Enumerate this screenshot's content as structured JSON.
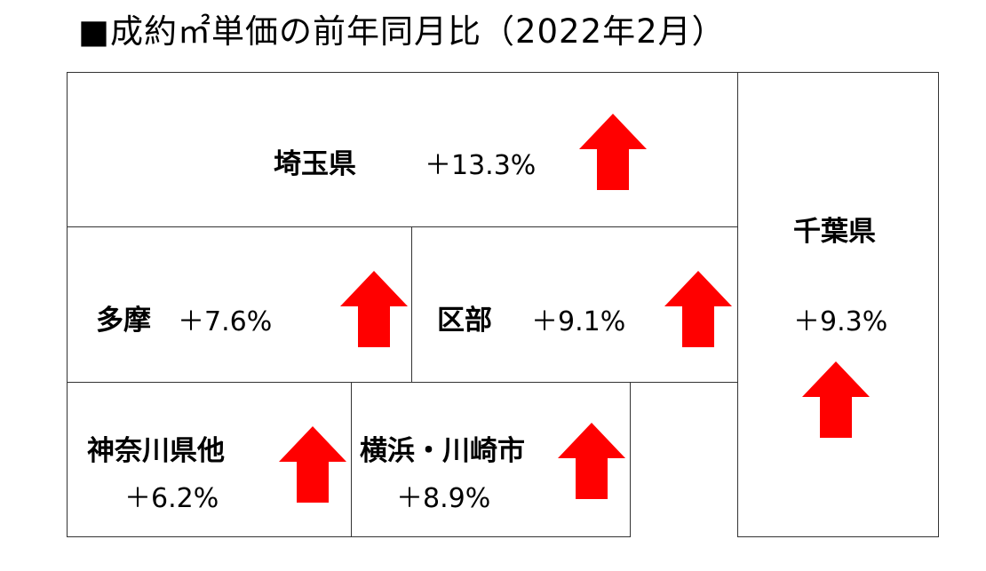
{
  "title": "■成約㎡単価の前年同月比（2022年2月）",
  "arrow_color": "#ff0000",
  "regions": {
    "saitama": {
      "name": "埼玉県",
      "change": "＋13.3%",
      "direction": "up"
    },
    "tama": {
      "name": "多摩",
      "change": "＋7.6%",
      "direction": "up"
    },
    "kubu": {
      "name": "区部",
      "change": "＋9.1%",
      "direction": "up"
    },
    "kanagawa": {
      "name": "神奈川県他",
      "change": "＋6.2%",
      "direction": "up"
    },
    "yokohama": {
      "name": "横浜・川崎市",
      "change": "＋8.9%",
      "direction": "up"
    },
    "chiba": {
      "name": "千葉県",
      "change": "＋9.3%",
      "direction": "up"
    }
  }
}
